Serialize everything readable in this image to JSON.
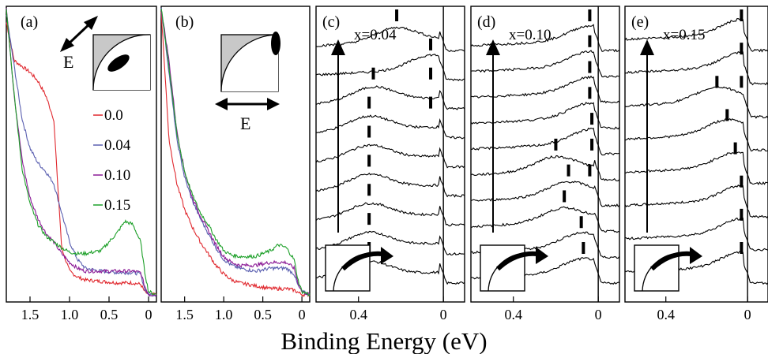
{
  "figure": {
    "xlabel": "Binding Energy (eV)"
  },
  "colors": {
    "0.0": "#e0282e",
    "0.04": "#5a5fb0",
    "0.10": "#8b1a96",
    "0.15": "#1ea02a"
  },
  "chart_data": [
    {
      "panel": "(a)",
      "type": "line",
      "xlabel": "Binding Energy (eV)",
      "xlim": [
        1.8,
        -0.1
      ],
      "xticks": [
        "1.5",
        "1.0",
        "0.5",
        "0"
      ],
      "polarization_label": "E",
      "legend_position": "right",
      "series": [
        {
          "name": "0.0",
          "color": "#e0282e",
          "x": [
            1.8,
            1.7,
            1.6,
            1.5,
            1.4,
            1.3,
            1.2,
            1.1,
            1.0,
            0.9,
            0.8,
            0.6,
            0.4,
            0.2,
            0.1,
            0.05,
            0.0,
            -0.1
          ],
          "y": [
            0.95,
            0.82,
            0.8,
            0.78,
            0.75,
            0.7,
            0.62,
            0.18,
            0.1,
            0.08,
            0.07,
            0.065,
            0.06,
            0.06,
            0.055,
            0.03,
            0.02,
            0.02
          ]
        },
        {
          "name": "0.04",
          "color": "#5a5fb0",
          "x": [
            1.8,
            1.7,
            1.6,
            1.5,
            1.4,
            1.3,
            1.2,
            1.1,
            1.0,
            0.9,
            0.8,
            0.6,
            0.4,
            0.2,
            0.1,
            0.05,
            0.0,
            -0.1
          ],
          "y": [
            0.98,
            0.8,
            0.62,
            0.52,
            0.47,
            0.44,
            0.4,
            0.3,
            0.2,
            0.14,
            0.11,
            0.1,
            0.095,
            0.095,
            0.09,
            0.04,
            0.02,
            0.02
          ]
        },
        {
          "name": "0.10",
          "color": "#8b1a96",
          "x": [
            1.8,
            1.7,
            1.6,
            1.5,
            1.4,
            1.3,
            1.2,
            1.1,
            1.0,
            0.9,
            0.8,
            0.6,
            0.4,
            0.2,
            0.1,
            0.05,
            0.0,
            -0.1
          ],
          "y": [
            1.0,
            0.7,
            0.48,
            0.35,
            0.28,
            0.23,
            0.2,
            0.16,
            0.13,
            0.11,
            0.1,
            0.1,
            0.1,
            0.1,
            0.095,
            0.05,
            0.02,
            0.02
          ]
        },
        {
          "name": "0.15",
          "color": "#1ea02a",
          "x": [
            1.8,
            1.7,
            1.6,
            1.5,
            1.4,
            1.3,
            1.2,
            1.1,
            1.0,
            0.9,
            0.8,
            0.6,
            0.4,
            0.3,
            0.2,
            0.1,
            0.05,
            0.0,
            -0.1
          ],
          "y": [
            1.0,
            0.7,
            0.45,
            0.33,
            0.26,
            0.22,
            0.2,
            0.18,
            0.165,
            0.16,
            0.16,
            0.17,
            0.23,
            0.27,
            0.26,
            0.2,
            0.1,
            0.03,
            0.02
          ]
        }
      ]
    },
    {
      "panel": "(b)",
      "type": "line",
      "xlabel": "Binding Energy (eV)",
      "xlim": [
        1.8,
        -0.1
      ],
      "xticks": [
        "1.5",
        "1.0",
        "0.5",
        "0"
      ],
      "polarization_label": "E",
      "series": [
        {
          "name": "0.0",
          "color": "#e0282e",
          "x": [
            1.8,
            1.7,
            1.6,
            1.5,
            1.4,
            1.3,
            1.2,
            1.1,
            1.0,
            0.9,
            0.8,
            0.6,
            0.4,
            0.2,
            0.1,
            0.0,
            -0.1
          ],
          "y": [
            0.99,
            0.55,
            0.4,
            0.31,
            0.25,
            0.2,
            0.16,
            0.12,
            0.09,
            0.07,
            0.06,
            0.05,
            0.04,
            0.04,
            0.035,
            0.02,
            0.02
          ]
        },
        {
          "name": "0.04",
          "color": "#5a5fb0",
          "x": [
            1.8,
            1.7,
            1.6,
            1.5,
            1.4,
            1.3,
            1.2,
            1.1,
            1.0,
            0.9,
            0.8,
            0.6,
            0.4,
            0.2,
            0.1,
            0.05,
            0.0,
            -0.1
          ],
          "y": [
            1.0,
            0.78,
            0.55,
            0.42,
            0.34,
            0.28,
            0.23,
            0.18,
            0.14,
            0.12,
            0.11,
            0.1,
            0.11,
            0.11,
            0.09,
            0.05,
            0.03,
            0.02
          ]
        },
        {
          "name": "0.10",
          "color": "#8b1a96",
          "x": [
            1.8,
            1.7,
            1.6,
            1.5,
            1.4,
            1.3,
            1.2,
            1.1,
            1.0,
            0.9,
            0.8,
            0.6,
            0.4,
            0.2,
            0.1,
            0.05,
            0.0,
            -0.1
          ],
          "y": [
            1.0,
            0.82,
            0.58,
            0.44,
            0.35,
            0.29,
            0.24,
            0.19,
            0.15,
            0.13,
            0.12,
            0.12,
            0.13,
            0.13,
            0.11,
            0.06,
            0.03,
            0.02
          ]
        },
        {
          "name": "0.15",
          "color": "#1ea02a",
          "x": [
            1.8,
            1.7,
            1.6,
            1.5,
            1.4,
            1.3,
            1.2,
            1.1,
            1.0,
            0.9,
            0.8,
            0.6,
            0.4,
            0.3,
            0.2,
            0.1,
            0.05,
            0.0,
            -0.1
          ],
          "y": [
            1.0,
            0.8,
            0.57,
            0.44,
            0.36,
            0.3,
            0.26,
            0.21,
            0.17,
            0.155,
            0.15,
            0.15,
            0.17,
            0.19,
            0.18,
            0.14,
            0.07,
            0.03,
            0.02
          ]
        }
      ]
    },
    {
      "panel": "(c)",
      "type": "line",
      "label": "x=0.04",
      "xlim": [
        0.6,
        -0.1
      ],
      "xticks": [
        "0.4",
        "0"
      ],
      "n_curves": 9,
      "peak_markers": [
        [
          0.22
        ],
        [
          0.06
        ],
        [
          0.33,
          0.06
        ],
        [
          0.35,
          0.06
        ],
        [
          0.35
        ],
        [
          0.35
        ],
        [
          0.35
        ],
        [
          0.35
        ],
        [
          0.35
        ]
      ]
    },
    {
      "panel": "(d)",
      "type": "line",
      "label": "x=0.10",
      "xlim": [
        0.6,
        -0.1
      ],
      "xticks": [
        "0.4",
        "0"
      ],
      "n_curves": 10,
      "peak_markers": [
        [
          0.04
        ],
        [
          0.04
        ],
        [
          0.04
        ],
        [
          0.04
        ],
        [
          0.03
        ],
        [
          0.2,
          0.03
        ],
        [
          0.14,
          0.04
        ],
        [
          0.16
        ],
        [
          0.08
        ],
        [
          0.07
        ]
      ]
    },
    {
      "panel": "(e)",
      "type": "line",
      "label": "x=0.15",
      "xlim": [
        0.6,
        -0.1
      ],
      "xticks": [
        "0.4",
        "0"
      ],
      "n_curves": 8,
      "peak_markers": [
        [
          0.03
        ],
        [
          0.03
        ],
        [
          0.15,
          0.03
        ],
        [
          0.1
        ],
        [
          0.06
        ],
        [
          0.03
        ],
        [
          0.03
        ],
        [
          0.03
        ]
      ]
    }
  ]
}
